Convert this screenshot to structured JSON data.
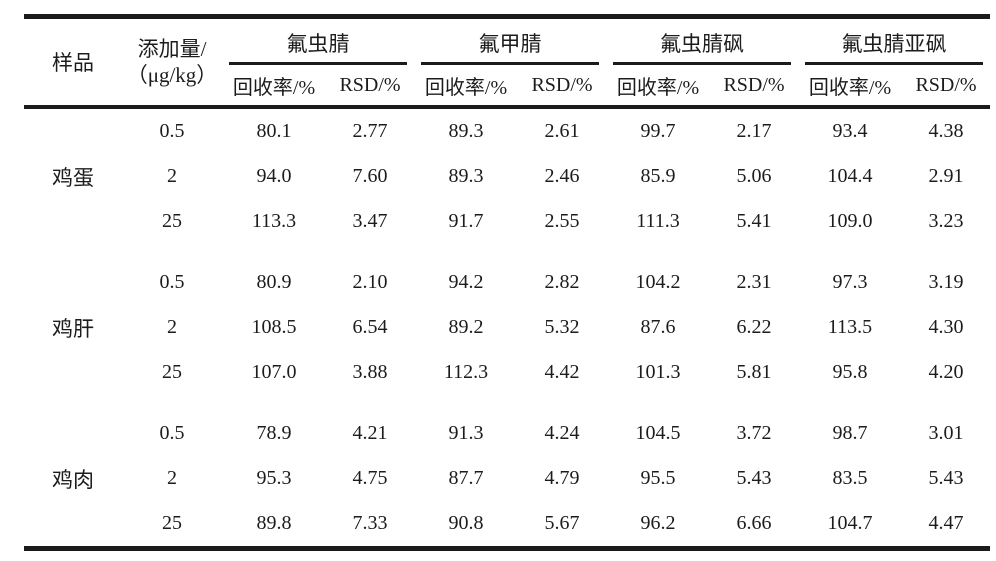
{
  "colors": {
    "text": "#1c1c1c",
    "rule": "#1b1b1b",
    "background": "#ffffff"
  },
  "chart_data": {
    "type": "table",
    "header": {
      "sample_label": "样品",
      "spike_label_line1": "添加量/",
      "spike_label_line2": "（μg/kg）",
      "analyte_groups": [
        {
          "name": "氟虫腈",
          "recovery_label": "回收率/%",
          "rsd_label": "RSD/%"
        },
        {
          "name": "氟甲腈",
          "recovery_label": "回收率/%",
          "rsd_label": "RSD/%"
        },
        {
          "name": "氟虫腈砜",
          "recovery_label": "回收率/%",
          "rsd_label": "RSD/%"
        },
        {
          "name": "氟虫腈亚砜",
          "recovery_label": "回收率/%",
          "rsd_label": "RSD/%"
        }
      ]
    },
    "sample_groups": [
      {
        "sample": "鸡蛋",
        "rows": [
          {
            "spike": "0.5",
            "cells": [
              "80.1",
              "2.77",
              "89.3",
              "2.61",
              "99.7",
              "2.17",
              "93.4",
              "4.38"
            ]
          },
          {
            "spike": "2",
            "cells": [
              "94.0",
              "7.60",
              "89.3",
              "2.46",
              "85.9",
              "5.06",
              "104.4",
              "2.91"
            ]
          },
          {
            "spike": "25",
            "cells": [
              "113.3",
              "3.47",
              "91.7",
              "2.55",
              "111.3",
              "5.41",
              "109.0",
              "3.23"
            ]
          }
        ]
      },
      {
        "sample": "鸡肝",
        "rows": [
          {
            "spike": "0.5",
            "cells": [
              "80.9",
              "2.10",
              "94.2",
              "2.82",
              "104.2",
              "2.31",
              "97.3",
              "3.19"
            ]
          },
          {
            "spike": "2",
            "cells": [
              "108.5",
              "6.54",
              "89.2",
              "5.32",
              "87.6",
              "6.22",
              "113.5",
              "4.30"
            ]
          },
          {
            "spike": "25",
            "cells": [
              "107.0",
              "3.88",
              "112.3",
              "4.42",
              "101.3",
              "5.81",
              "95.8",
              "4.20"
            ]
          }
        ]
      },
      {
        "sample": "鸡肉",
        "rows": [
          {
            "spike": "0.5",
            "cells": [
              "78.9",
              "4.21",
              "91.3",
              "4.24",
              "104.5",
              "3.72",
              "98.7",
              "3.01"
            ]
          },
          {
            "spike": "2",
            "cells": [
              "95.3",
              "4.75",
              "87.7",
              "4.79",
              "95.5",
              "5.43",
              "83.5",
              "5.43"
            ]
          },
          {
            "spike": "25",
            "cells": [
              "89.8",
              "7.33",
              "90.8",
              "5.67",
              "96.2",
              "6.66",
              "104.7",
              "4.47"
            ]
          }
        ]
      }
    ]
  }
}
